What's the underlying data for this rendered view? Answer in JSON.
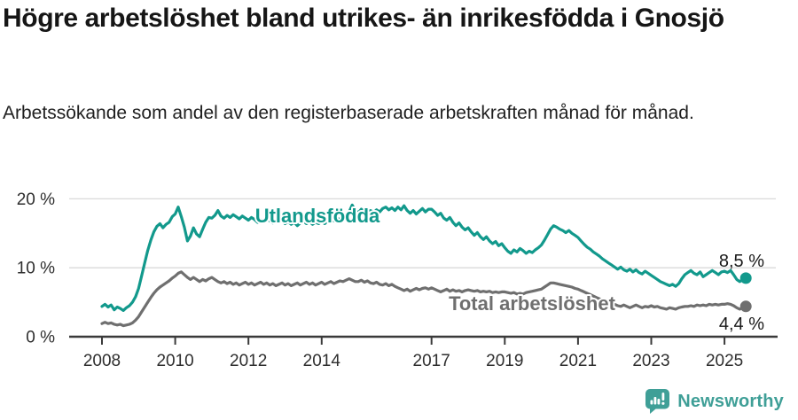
{
  "header": {
    "title": "Högre arbetslöshet bland utrikes- än inrikesfödda i Gnosjö",
    "subtitle": "Arbetssökande som andel av den registerbaserade arbetskraften månad för månad."
  },
  "footer": {
    "brand": "Newsworthy",
    "brand_color": "#3f9f97"
  },
  "chart_data": {
    "type": "line",
    "title": "Högre arbetslöshet bland utrikes- än inrikesfödda i Gnosjö",
    "xlabel": "",
    "ylabel": "",
    "grid": "horizontal",
    "ylim": [
      0,
      21
    ],
    "xlim": [
      2007.1,
      2026.4
    ],
    "y_ticks": [
      0,
      10,
      20
    ],
    "y_tick_labels": [
      "0 %",
      "10 %",
      "20 %"
    ],
    "x_ticks": [
      2008,
      2010,
      2012,
      2014,
      2017,
      2019,
      2021,
      2023,
      2025
    ],
    "x_tick_labels": [
      "2008",
      "2010",
      "2012",
      "2014",
      "2017",
      "2019",
      "2021",
      "2023",
      "2025"
    ],
    "x_start": 2008.0,
    "x_step": 0.0833333,
    "x_unit": "year (monthly values)",
    "series": [
      {
        "name": "Utlandsfödda",
        "label": "Utlandsfödda",
        "color": "#12998c",
        "end_label": "8,5 %",
        "end_value": 8.5,
        "values": [
          4.4,
          4.7,
          4.3,
          4.6,
          3.9,
          4.3,
          4.1,
          3.8,
          4.2,
          4.5,
          5.0,
          5.8,
          7.0,
          8.8,
          10.7,
          12.5,
          14.0,
          15.2,
          16.0,
          16.4,
          15.8,
          16.3,
          16.6,
          17.4,
          17.8,
          18.8,
          17.4,
          15.9,
          13.9,
          14.6,
          15.8,
          14.9,
          14.5,
          15.6,
          16.6,
          17.3,
          17.2,
          17.6,
          18.3,
          17.5,
          17.2,
          17.6,
          17.3,
          17.7,
          17.4,
          17.1,
          17.5,
          17.2,
          16.9,
          17.3,
          17.0,
          16.6,
          17.0,
          16.7,
          17.1,
          16.8,
          16.5,
          16.9,
          16.6,
          16.9,
          16.4,
          16.7,
          16.3,
          16.6,
          16.1,
          16.5,
          16.8,
          16.4,
          16.7,
          16.3,
          16.6,
          16.4,
          16.7,
          16.4,
          16.8,
          17.1,
          16.8,
          17.2,
          17.0,
          17.4,
          17.7,
          18.1,
          19.1,
          18.3,
          18.0,
          18.5,
          18.1,
          17.9,
          18.3,
          18.0,
          18.4,
          18.1,
          18.6,
          18.8,
          18.4,
          18.7,
          18.3,
          18.8,
          18.4,
          19.0,
          18.3,
          17.9,
          18.3,
          17.8,
          18.2,
          18.6,
          18.1,
          18.5,
          18.5,
          18.1,
          17.6,
          17.9,
          17.2,
          16.9,
          17.3,
          16.6,
          16.1,
          16.5,
          15.9,
          15.5,
          15.8,
          15.2,
          14.7,
          15.1,
          14.5,
          14.1,
          14.5,
          13.9,
          13.5,
          13.8,
          13.2,
          13.5,
          12.9,
          12.4,
          12.1,
          12.6,
          12.3,
          12.8,
          12.5,
          12.1,
          12.4,
          12.2,
          12.6,
          12.9,
          13.3,
          14.0,
          14.8,
          15.6,
          16.1,
          15.9,
          15.6,
          15.4,
          15.1,
          15.4,
          15.0,
          14.7,
          14.4,
          13.9,
          13.4,
          13.0,
          12.7,
          12.3,
          12.0,
          11.7,
          11.3,
          11.0,
          10.7,
          10.4,
          10.1,
          9.8,
          10.1,
          9.7,
          9.5,
          9.8,
          9.4,
          9.7,
          9.3,
          9.1,
          9.5,
          9.2,
          8.9,
          8.6,
          8.3,
          8.0,
          7.8,
          7.6,
          7.4,
          7.6,
          7.3,
          7.7,
          8.4,
          9.0,
          9.3,
          9.6,
          9.2,
          9.0,
          9.4,
          8.7,
          9.0,
          9.3,
          9.6,
          9.3,
          9.0,
          9.4,
          9.5,
          9.3,
          9.6,
          9.0,
          8.3,
          8.0,
          8.3,
          8.5
        ]
      },
      {
        "name": "Total arbetslöshet",
        "label": "Total arbetslöshet",
        "color": "#6f6f6f",
        "end_label": "4,4 %",
        "end_value": 4.4,
        "values": [
          1.9,
          2.1,
          1.9,
          2.0,
          1.8,
          1.7,
          1.8,
          1.6,
          1.7,
          1.8,
          2.0,
          2.4,
          2.9,
          3.6,
          4.3,
          5.0,
          5.7,
          6.3,
          6.8,
          7.2,
          7.5,
          7.8,
          8.1,
          8.5,
          8.8,
          9.2,
          9.4,
          9.0,
          8.6,
          8.3,
          8.6,
          8.3,
          8.0,
          8.3,
          8.1,
          8.4,
          8.6,
          8.3,
          8.0,
          7.8,
          8.0,
          7.7,
          7.9,
          7.6,
          7.8,
          7.5,
          7.7,
          7.9,
          7.6,
          7.8,
          7.5,
          7.7,
          7.9,
          7.6,
          7.8,
          7.5,
          7.7,
          7.4,
          7.6,
          7.8,
          7.5,
          7.7,
          7.4,
          7.6,
          7.8,
          7.5,
          7.7,
          7.9,
          7.6,
          7.8,
          7.5,
          7.7,
          7.9,
          7.6,
          7.8,
          8.0,
          7.7,
          7.9,
          8.1,
          8.0,
          8.2,
          8.4,
          8.2,
          8.0,
          8.0,
          8.2,
          7.9,
          8.1,
          7.8,
          7.7,
          7.9,
          7.6,
          7.5,
          7.7,
          7.4,
          7.6,
          7.3,
          7.1,
          6.9,
          6.7,
          6.9,
          6.6,
          6.8,
          7.0,
          6.8,
          7.0,
          7.1,
          6.9,
          7.1,
          6.9,
          6.7,
          6.5,
          6.7,
          6.9,
          6.6,
          6.8,
          6.6,
          6.7,
          6.5,
          6.7,
          6.8,
          6.7,
          6.6,
          6.7,
          6.5,
          6.6,
          6.5,
          6.6,
          6.4,
          6.5,
          6.4,
          6.5,
          6.5,
          6.4,
          6.3,
          6.4,
          6.2,
          6.3,
          6.2,
          6.4,
          6.5,
          6.6,
          6.7,
          6.8,
          6.9,
          7.2,
          7.5,
          7.8,
          7.8,
          7.7,
          7.6,
          7.5,
          7.4,
          7.3,
          7.2,
          7.0,
          6.9,
          6.7,
          6.5,
          6.3,
          6.1,
          5.9,
          5.7,
          5.5,
          5.3,
          5.1,
          4.9,
          4.8,
          4.7,
          4.5,
          4.4,
          4.6,
          4.4,
          4.2,
          4.4,
          4.6,
          4.4,
          4.2,
          4.4,
          4.3,
          4.5,
          4.3,
          4.4,
          4.2,
          4.1,
          4.0,
          4.2,
          4.1,
          4.0,
          4.2,
          4.3,
          4.4,
          4.4,
          4.5,
          4.4,
          4.6,
          4.5,
          4.6,
          4.5,
          4.7,
          4.6,
          4.7,
          4.6,
          4.7,
          4.7,
          4.8,
          4.7,
          4.5,
          4.2,
          4.0,
          4.2,
          4.4
        ]
      }
    ]
  }
}
